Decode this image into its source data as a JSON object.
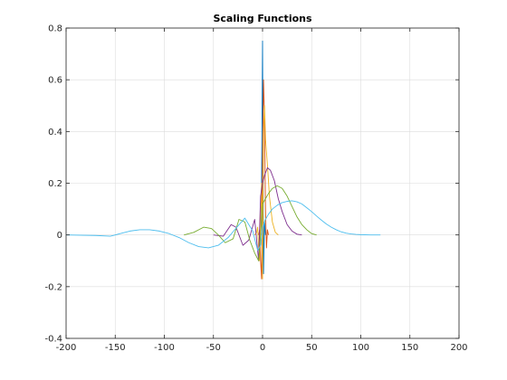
{
  "chart_data": {
    "type": "line",
    "title": "Scaling Functions",
    "xlabel": "",
    "ylabel": "",
    "xlim": [
      -200,
      200
    ],
    "ylim": [
      -0.4,
      0.8
    ],
    "xticks": [
      -200,
      -150,
      -100,
      -50,
      0,
      50,
      100,
      150,
      200
    ],
    "xtick_labels": [
      "-200",
      "-150",
      "-100",
      "-50",
      "0",
      "50",
      "100",
      "150",
      "200"
    ],
    "yticks": [
      -0.4,
      -0.2,
      0,
      0.2,
      0.4,
      0.6,
      0.8
    ],
    "ytick_labels": [
      "-0.4",
      "-0.2",
      "0",
      "0.2",
      "0.4",
      "0.6",
      "0.8"
    ],
    "grid": true,
    "legend": "none",
    "series": [
      {
        "color": "#0072BD",
        "x": [
          -2,
          -1,
          0,
          1,
          2,
          3
        ],
        "y": [
          0,
          0.2,
          0.75,
          -0.15,
          0.05,
          0
        ]
      },
      {
        "color": "#D95319",
        "x": [
          -4,
          -3,
          -2,
          -1,
          0,
          1,
          2,
          3,
          4,
          5,
          6
        ],
        "y": [
          0,
          0.02,
          -0.1,
          -0.17,
          0.27,
          0.6,
          0.45,
          0.1,
          -0.05,
          0.02,
          0
        ]
      },
      {
        "color": "#EDB120",
        "x": [
          -8,
          -6,
          -5,
          -4,
          -3,
          -2,
          -1,
          0,
          1,
          2,
          3,
          5,
          7,
          10,
          13,
          16
        ],
        "y": [
          0,
          0.01,
          0.03,
          -0.05,
          -0.1,
          0.05,
          0.2,
          -0.17,
          0.4,
          0.5,
          0.37,
          0.27,
          0.15,
          0.05,
          0.01,
          0
        ]
      },
      {
        "color": "#7E2F8E",
        "x": [
          -50,
          -40,
          -32,
          -27,
          -20,
          -14,
          -8,
          -4,
          -2,
          0,
          2,
          5,
          8,
          12,
          16,
          20,
          25,
          30,
          35,
          40
        ],
        "y": [
          0,
          -0.005,
          0.04,
          0.03,
          -0.04,
          -0.02,
          0.06,
          -0.1,
          0.15,
          0.2,
          0.23,
          0.26,
          0.25,
          0.21,
          0.14,
          0.09,
          0.04,
          0.015,
          0.003,
          0
        ]
      },
      {
        "color": "#77AC30",
        "x": [
          -80,
          -70,
          -60,
          -52,
          -45,
          -38,
          -30,
          -24,
          -18,
          -13,
          -8,
          -4,
          -1,
          0,
          3,
          6,
          10,
          15,
          20,
          25,
          30,
          35,
          40,
          45,
          50,
          55
        ],
        "y": [
          0,
          0.01,
          0.03,
          0.025,
          0,
          -0.03,
          -0.015,
          0.06,
          0.05,
          -0.02,
          -0.07,
          -0.1,
          0.05,
          0.12,
          0.14,
          0.16,
          0.18,
          0.19,
          0.18,
          0.15,
          0.11,
          0.07,
          0.04,
          0.02,
          0.005,
          0
        ]
      },
      {
        "color": "#4DBEEE",
        "x": [
          -200,
          -170,
          -155,
          -145,
          -135,
          -125,
          -115,
          -105,
          -95,
          -85,
          -75,
          -65,
          -55,
          -45,
          -35,
          -25,
          -18,
          -10,
          -5,
          -2,
          0,
          3,
          6,
          10,
          15,
          20,
          25,
          30,
          35,
          40,
          45,
          50,
          55,
          60,
          65,
          70,
          75,
          80,
          85,
          90,
          95,
          100,
          110,
          120
        ],
        "y": [
          0,
          -0.002,
          -0.005,
          0.005,
          0.015,
          0.02,
          0.02,
          0.015,
          0.005,
          -0.01,
          -0.03,
          -0.045,
          -0.05,
          -0.04,
          -0.01,
          0.035,
          0.065,
          0.015,
          -0.06,
          -0.04,
          0.03,
          0.06,
          0.08,
          0.1,
          0.115,
          0.125,
          0.13,
          0.132,
          0.128,
          0.12,
          0.105,
          0.09,
          0.073,
          0.057,
          0.042,
          0.03,
          0.02,
          0.012,
          0.007,
          0.004,
          0.002,
          0.001,
          0,
          0
        ]
      }
    ]
  }
}
